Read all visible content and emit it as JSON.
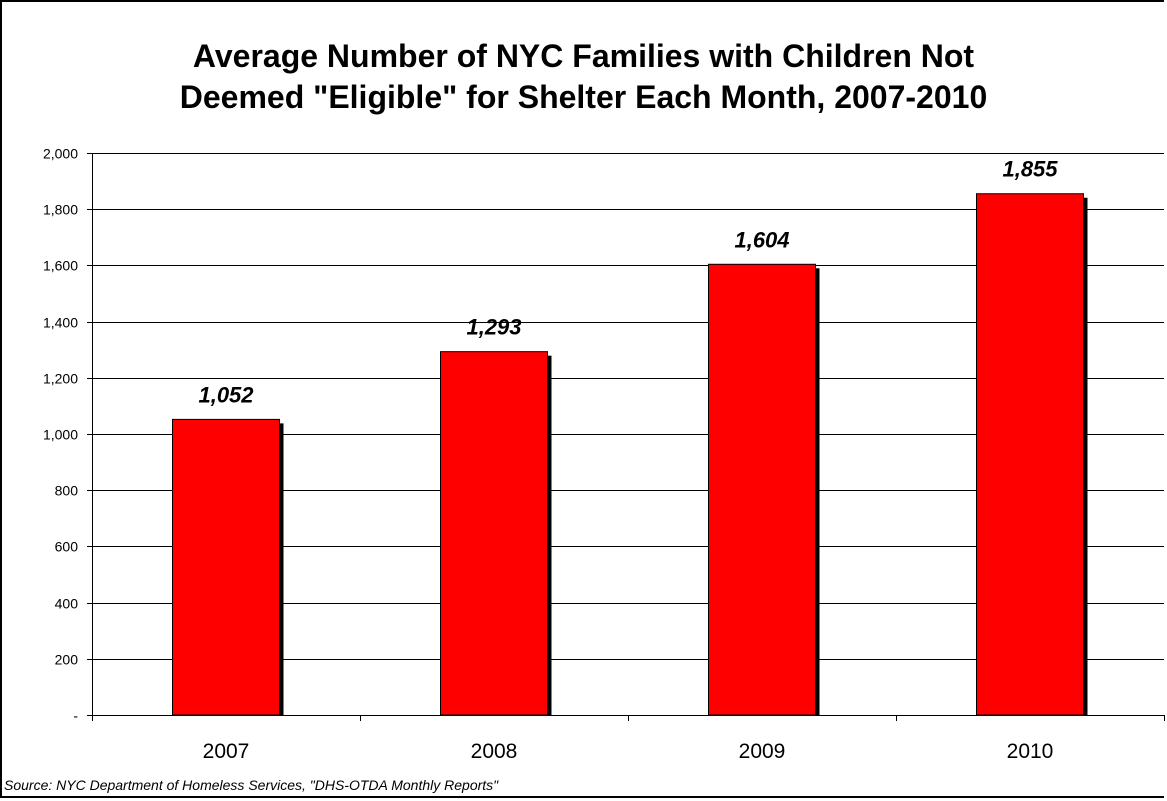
{
  "chart_data": {
    "type": "bar",
    "title_lines": [
      "Average Number of NYC Families with Children Not",
      "Deemed \"Eligible\" for Shelter Each Month, 2007-2010"
    ],
    "categories": [
      "2007",
      "2008",
      "2009",
      "2010"
    ],
    "values": [
      1052,
      1293,
      1604,
      1855
    ],
    "value_labels": [
      "1,052",
      "1,293",
      "1,604",
      "1,855"
    ],
    "ylim": [
      0,
      2000
    ],
    "yticks": [
      0,
      200,
      400,
      600,
      800,
      1000,
      1200,
      1400,
      1600,
      1800,
      2000
    ],
    "ytick_labels": [
      "-",
      "200",
      "400",
      "600",
      "800",
      "1,000",
      "1,200",
      "1,400",
      "1,600",
      "1,800",
      "2,000"
    ],
    "grid": "horizontal",
    "legend": "none",
    "bar_color": "#ff0000",
    "bar_shadow_color": "#000000",
    "source": "Source:  NYC Department of Homeless Services, \"DHS-OTDA Monthly Reports\""
  }
}
